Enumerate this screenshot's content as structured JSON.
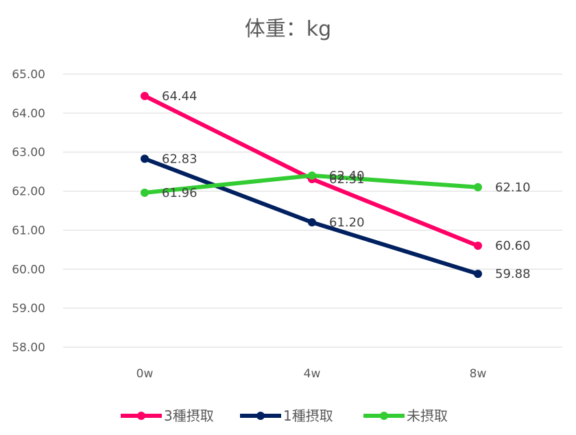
{
  "chart_data": {
    "type": "line",
    "title": "体重：kg",
    "xlabel": "",
    "ylabel": "",
    "categories": [
      "0w",
      "4w",
      "8w"
    ],
    "ylim": [
      58,
      65
    ],
    "yticks": [
      58,
      59,
      60,
      61,
      62,
      63,
      64,
      65
    ],
    "ytick_labels": [
      "58.00",
      "59.00",
      "60.00",
      "61.00",
      "62.00",
      "63.00",
      "64.00",
      "65.00"
    ],
    "grid": true,
    "legend_position": "bottom",
    "series": [
      {
        "name": "3種摂取",
        "color": "#ff0066",
        "values": [
          64.44,
          62.31,
          60.6
        ],
        "labels": [
          "64.44",
          "62.31",
          "60.60"
        ]
      },
      {
        "name": "1種摂取",
        "color": "#002060",
        "values": [
          62.83,
          61.2,
          59.88
        ],
        "labels": [
          "62.83",
          "61.20",
          "59.88"
        ]
      },
      {
        "name": "未摂取",
        "color": "#33cc33",
        "values": [
          61.96,
          62.4,
          62.1
        ],
        "labels": [
          "61.96",
          "62.40",
          "62.10"
        ]
      }
    ]
  }
}
